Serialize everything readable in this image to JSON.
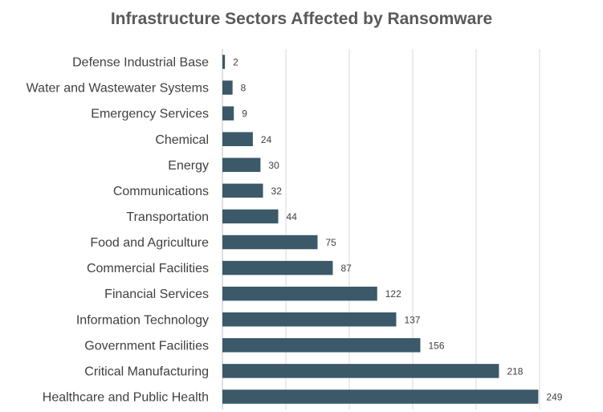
{
  "chart_data": {
    "type": "bar",
    "orientation": "horizontal",
    "title": "Infrastructure Sectors Affected by Ransomware",
    "categories": [
      "Defense Industrial Base",
      "Water and Wastewater Systems",
      "Emergency Services",
      "Chemical",
      "Energy",
      "Communications",
      "Transportation",
      "Food and Agriculture",
      "Commercial Facilities",
      "Financial Services",
      "Information Technology",
      "Government Facilities",
      "Critical Manufacturing",
      "Healthcare and Public Health"
    ],
    "values": [
      2,
      8,
      9,
      24,
      30,
      32,
      44,
      75,
      87,
      122,
      137,
      156,
      218,
      249
    ],
    "xlim": [
      0,
      300
    ],
    "grid": "vertical",
    "legend": "none",
    "bar_color": "#3b5968"
  }
}
